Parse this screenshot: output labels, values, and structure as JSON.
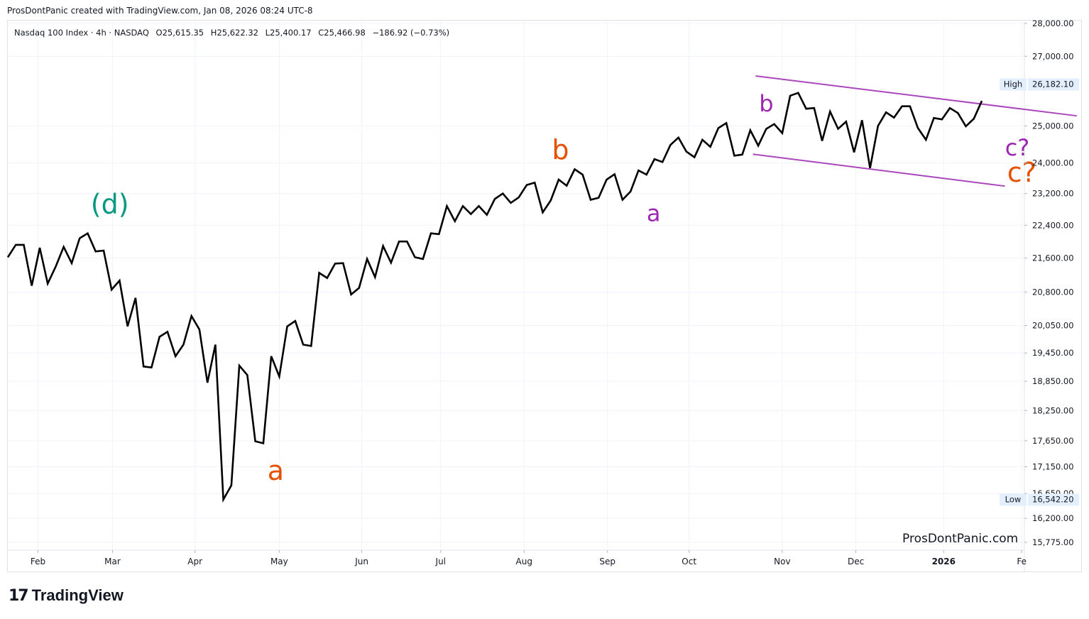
{
  "header": {
    "credit": "ProsDontPanic created with TradingView.com, Jan 08, 2026 08:24 UTC-8"
  },
  "legend": {
    "symbol": "Nasdaq 100 Index · 4h · NASDAQ",
    "open": "O25,615.35",
    "high": "H25,622.32",
    "low": "L25,400.17",
    "close": "C25,466.98",
    "change": "−186.92 (−0.73%)"
  },
  "colors": {
    "line": "#000000",
    "orange": "#e65100",
    "purple": "#9c27b0",
    "teal": "#089981",
    "channel": "#ab47bc"
  },
  "watermark": "ProsDontPanic.com",
  "brand": {
    "mark": "17",
    "name": "TradingView"
  },
  "chart_data": {
    "type": "line",
    "title": "Nasdaq 100 Index · 4h · NASDAQ",
    "ylim": [
      15775,
      28000
    ],
    "y_scale": "log",
    "x_index_range": [
      0,
      113
    ],
    "y_ticks": [
      "28,000.00",
      "27,000.00",
      "25,000.00",
      "24,000.00",
      "23,200.00",
      "22,400.00",
      "21,600.00",
      "20,800.00",
      "20,050.00",
      "19,450.00",
      "18,850.00",
      "18,250.00",
      "17,650.00",
      "17,150.00",
      "16,650.00",
      "16,200.00",
      "15,775.00"
    ],
    "y_tick_values": [
      28000,
      27000,
      25000,
      24000,
      23200,
      22400,
      21600,
      20800,
      20050,
      19450,
      18850,
      18250,
      17650,
      17150,
      16650,
      16200,
      15775
    ],
    "x_ticks": [
      {
        "label": "Feb",
        "index": 3.4
      },
      {
        "label": "Mar",
        "index": 11.8
      },
      {
        "label": "Apr",
        "index": 21.1
      },
      {
        "label": "May",
        "index": 30.6
      },
      {
        "label": "Jun",
        "index": 39.9
      },
      {
        "label": "Jul",
        "index": 48.8
      },
      {
        "label": "Aug",
        "index": 58.2
      },
      {
        "label": "Sep",
        "index": 67.6
      },
      {
        "label": "Oct",
        "index": 76.8
      },
      {
        "label": "Nov",
        "index": 87.3
      },
      {
        "label": "Dec",
        "index": 95.6
      },
      {
        "label": "2026",
        "index": 105.5
      },
      {
        "label": "Fe",
        "index": 114.3
      }
    ],
    "series": [
      {
        "name": "Nasdaq 100 Index",
        "values": [
          21620,
          21920,
          21920,
          20950,
          21850,
          21000,
          21400,
          21870,
          21480,
          22080,
          22200,
          21760,
          21780,
          20860,
          21070,
          20030,
          20670,
          19160,
          19140,
          19800,
          19910,
          19380,
          19630,
          20260,
          19960,
          18820,
          19630,
          16540,
          16800,
          19180,
          18980,
          17640,
          17600,
          19380,
          18950,
          20030,
          20150,
          19630,
          19600,
          21250,
          21130,
          21470,
          21480,
          20750,
          20900,
          21580,
          21150,
          21890,
          21490,
          22000,
          22000,
          21620,
          21580,
          22200,
          22180,
          22880,
          22500,
          22880,
          22680,
          22880,
          22660,
          23060,
          23200,
          22960,
          23100,
          23420,
          23480,
          22720,
          23020,
          23560,
          23400,
          23830,
          23690,
          23040,
          23090,
          23560,
          23700,
          23040,
          23250,
          23800,
          23690,
          24100,
          24020,
          24480,
          24680,
          24300,
          24150,
          24620,
          24430,
          24940,
          25080,
          24190,
          24220,
          24880,
          24460,
          24920,
          25050,
          24800,
          25850,
          25930,
          25480,
          25500,
          24590,
          25400,
          24920,
          25120,
          24280,
          25160,
          23860,
          25000,
          25380,
          25230,
          25550,
          25550,
          24940,
          24620,
          25220,
          25180,
          25500,
          25360,
          24990,
          25200,
          25700
        ],
        "x_step": 0.9
      }
    ],
    "annotations": [
      {
        "text": "(d)",
        "color": "teal",
        "x": 11.5,
        "y": 22700
      },
      {
        "text": "a",
        "color": "orange",
        "x": 30.2,
        "y": 16900
      },
      {
        "text": "b",
        "color": "orange",
        "x": 62.3,
        "y": 24100
      },
      {
        "text": "a",
        "color": "purple",
        "x": 72.8,
        "y": 22500
      },
      {
        "text": "b",
        "color": "purple",
        "x": 85.5,
        "y": 25400
      },
      {
        "text": "c?",
        "color": "purple",
        "x": 113.8,
        "y": 24200
      },
      {
        "text": "c?",
        "color": "orange",
        "x": 114.3,
        "y": 23500
      }
    ],
    "channel_lines": [
      {
        "x1": 84.3,
        "y1": 26420,
        "x2": 120.5,
        "y2": 25280
      },
      {
        "x1": 84.0,
        "y1": 24230,
        "x2": 112.4,
        "y2": 23390
      }
    ],
    "badges": [
      {
        "label": "High",
        "value": "26,182.10",
        "y": 26182.1
      },
      {
        "label": "Low",
        "value": "16,542.20",
        "y": 16542.2
      }
    ]
  }
}
